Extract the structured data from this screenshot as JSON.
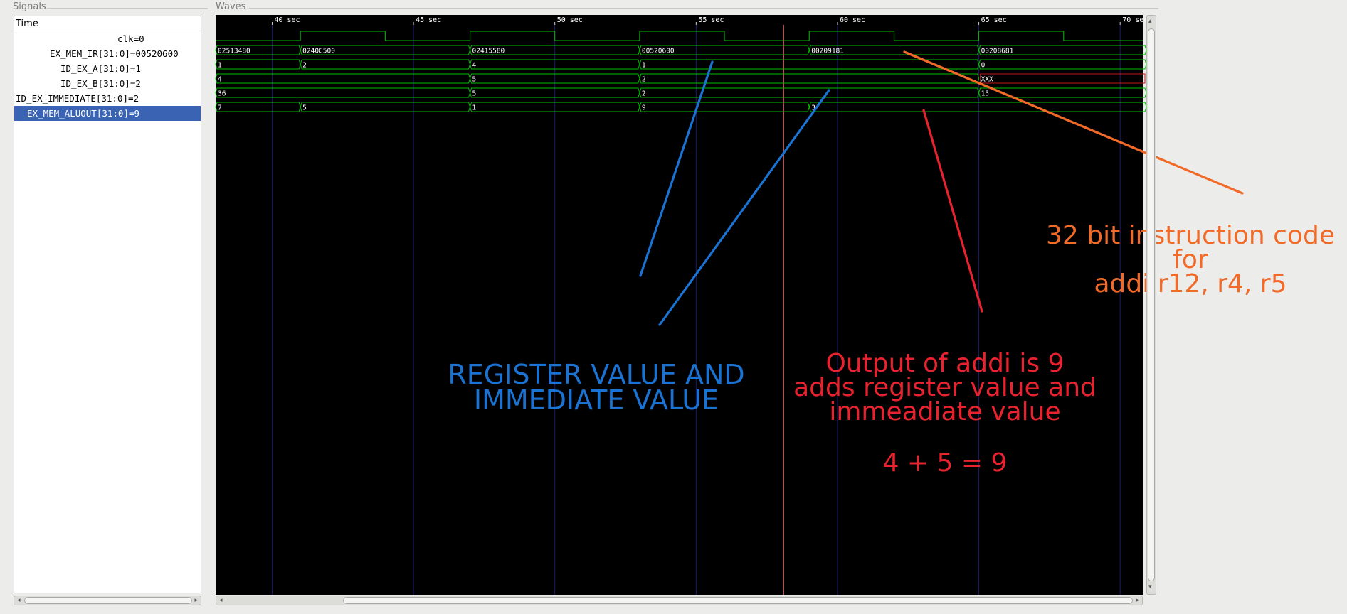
{
  "panels": {
    "signals_title": "Signals",
    "waves_title": "Waves"
  },
  "signals": {
    "header": "Time",
    "rows": [
      {
        "label": "clk=0",
        "indent": 145,
        "selected": false
      },
      {
        "label": "EX_MEM_IR[31:0]=00520600",
        "indent": 50,
        "selected": false
      },
      {
        "label": "ID_EX_A[31:0]=1",
        "indent": 65,
        "selected": false
      },
      {
        "label": "ID_EX_B[31:0]=2",
        "indent": 65,
        "selected": false
      },
      {
        "label": "ID_EX_IMMEDIATE[31:0]=2",
        "indent": 2,
        "selected": false
      },
      {
        "label": "EX_MEM_ALUOUT[31:0]=9",
        "indent": 18,
        "selected": true
      }
    ]
  },
  "timeline": {
    "start": 38,
    "end": 70.8,
    "ticks": [
      {
        "t": 40,
        "label": "40 sec"
      },
      {
        "t": 45,
        "label": "45 sec"
      },
      {
        "t": 50,
        "label": "50 sec"
      },
      {
        "t": 55,
        "label": "55 sec"
      },
      {
        "t": 60,
        "label": "60 sec"
      },
      {
        "t": 65,
        "label": "65 sec"
      },
      {
        "t": 70,
        "label": "70 sec"
      }
    ],
    "clock_edges": [
      38,
      41,
      44,
      47,
      50,
      53,
      56,
      59,
      62,
      65,
      68
    ],
    "cursor_time": 58.1,
    "buses": [
      {
        "name": "EX_MEM_IR",
        "segments": [
          {
            "t": 38,
            "v": "02513480"
          },
          {
            "t": 41,
            "v": "0240C500"
          },
          {
            "t": 47,
            "v": "02415580"
          },
          {
            "t": 53,
            "v": "00520600"
          },
          {
            "t": 59,
            "v": "00209181"
          },
          {
            "t": 65,
            "v": "00208681"
          }
        ]
      },
      {
        "name": "ID_EX_A",
        "segments": [
          {
            "t": 38,
            "v": "1"
          },
          {
            "t": 41,
            "v": "2"
          },
          {
            "t": 47,
            "v": "4"
          },
          {
            "t": 53,
            "v": "1"
          },
          {
            "t": 65,
            "v": "0"
          }
        ]
      },
      {
        "name": "ID_EX_B",
        "segments": [
          {
            "t": 38,
            "v": "4"
          },
          {
            "t": 47,
            "v": "5"
          },
          {
            "t": 53,
            "v": "2"
          },
          {
            "t": 65,
            "v": "XXX",
            "undefined": true
          }
        ]
      },
      {
        "name": "ID_EX_IMMEDIATE",
        "segments": [
          {
            "t": 38,
            "v": "36"
          },
          {
            "t": 47,
            "v": "5"
          },
          {
            "t": 53,
            "v": "2"
          },
          {
            "t": 65,
            "v": "15"
          }
        ]
      },
      {
        "name": "EX_MEM_ALUOUT",
        "segments": [
          {
            "t": 38,
            "v": "7"
          },
          {
            "t": 41,
            "v": "5"
          },
          {
            "t": 47,
            "v": "1"
          },
          {
            "t": 53,
            "v": "9"
          },
          {
            "t": 59,
            "v": "3"
          }
        ]
      }
    ]
  },
  "annotations": {
    "blue": "REGISTER VALUE AND\nIMMEDIATE VALUE",
    "red": "Output of addi is 9\nadds register value and\nimmeadiate value",
    "red_eq": "4 + 5 = 9",
    "orange": "32 bit instruction code\nfor\naddi r12, r4, r5"
  },
  "colors": {
    "wave": "#00c000",
    "grid": "#1a1a7a",
    "cursor": "#e04040",
    "undefined": "#c01818",
    "tick_text": "#ffffff",
    "blue": "#1a72d2",
    "red": "#e8232f",
    "orange": "#f26a28"
  }
}
